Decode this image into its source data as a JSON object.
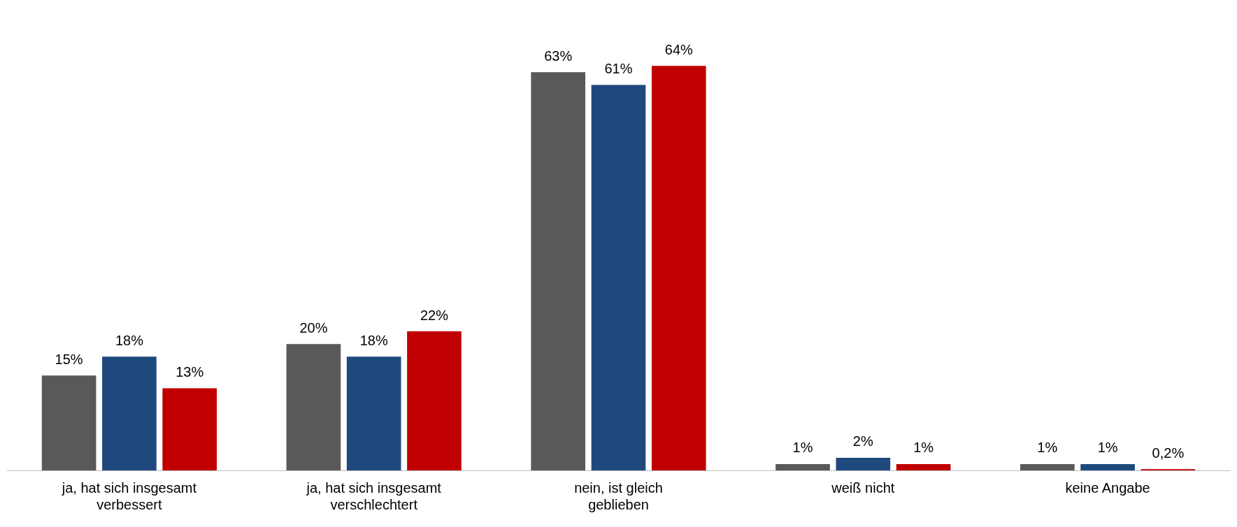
{
  "chart_data": {
    "type": "bar",
    "categories": [
      "ja, hat sich insgesamt verbessert",
      "ja, hat sich insgesamt verschlechtert",
      "nein, ist gleich geblieben",
      "weiß nicht",
      "keine Angabe"
    ],
    "series": [
      {
        "color": "#595959",
        "values": [
          15,
          20,
          63,
          1,
          1
        ],
        "value_labels": [
          "15%",
          "20%",
          "63%",
          "1%",
          "1%"
        ]
      },
      {
        "color": "#1f497d",
        "values": [
          18,
          18,
          61,
          2,
          1
        ],
        "value_labels": [
          "18%",
          "18%",
          "61%",
          "2%",
          "1%"
        ]
      },
      {
        "color": "#c00000",
        "values": [
          13,
          22,
          64,
          1,
          0.2
        ],
        "value_labels": [
          "13%",
          "22%",
          "64%",
          "1%",
          "0,2%"
        ]
      }
    ],
    "grid": false,
    "legend": false
  }
}
